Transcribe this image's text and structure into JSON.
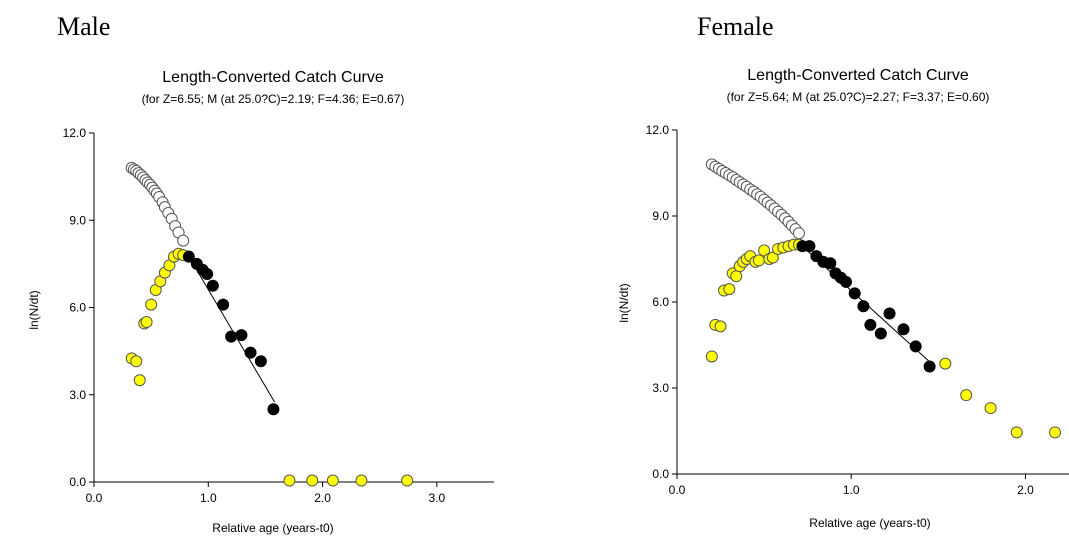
{
  "panels": {
    "left_label": "Male",
    "right_label": "Female"
  },
  "chart_data": [
    {
      "type": "scatter",
      "panel": "Male",
      "title": "Length-Converted Catch Curve",
      "subtitle": "(for Z=6.55; M (at 25.0?C)=2.19; F=4.36; E=0.67)",
      "xlabel": "Relative age (years-t0)",
      "ylabel": "ln(N/dt)",
      "xlim": [
        0,
        3.5
      ],
      "ylim": [
        0,
        12
      ],
      "xticks": [
        0,
        1,
        2,
        3
      ],
      "xtick_labels": [
        "0.0",
        "1.0",
        "2.0",
        "3.0"
      ],
      "yticks": [
        0,
        3,
        6,
        9,
        12
      ],
      "ytick_labels": [
        "0.0",
        "3.0",
        "6.0",
        "9.0",
        "12.0"
      ],
      "series": [
        {
          "role": "extrapolated",
          "color": "#ffffff",
          "x": [
            0.33,
            0.35,
            0.37,
            0.39,
            0.41,
            0.43,
            0.45,
            0.47,
            0.49,
            0.51,
            0.53,
            0.55,
            0.57,
            0.6,
            0.62,
            0.65,
            0.68,
            0.71,
            0.74,
            0.78
          ],
          "y": [
            10.8,
            10.75,
            10.7,
            10.62,
            10.55,
            10.47,
            10.38,
            10.3,
            10.22,
            10.12,
            10.02,
            9.92,
            9.8,
            9.62,
            9.45,
            9.25,
            9.05,
            8.8,
            8.58,
            8.3
          ]
        },
        {
          "role": "not-used",
          "color": "#ffff00",
          "x": [
            0.33,
            0.37,
            0.4,
            0.44,
            0.46,
            0.5,
            0.54,
            0.58,
            0.62,
            0.66,
            0.7,
            0.74,
            0.78,
            1.71,
            1.91,
            2.09,
            2.34,
            2.74
          ],
          "y": [
            4.25,
            4.15,
            3.5,
            5.45,
            5.5,
            6.1,
            6.6,
            6.9,
            7.2,
            7.45,
            7.75,
            7.85,
            7.8,
            0.05,
            0.05,
            0.05,
            0.05,
            0.05
          ]
        },
        {
          "role": "used-in-regression",
          "color": "#000000",
          "x": [
            0.83,
            0.9,
            0.95,
            0.99,
            1.04,
            1.13,
            1.2,
            1.29,
            1.37,
            1.46,
            1.57
          ],
          "y": [
            7.75,
            7.5,
            7.3,
            7.15,
            6.75,
            6.1,
            5.0,
            5.05,
            4.45,
            4.15,
            2.5
          ]
        }
      ],
      "regression_line": {
        "x": [
          0.8,
          1.58
        ],
        "y": [
          7.95,
          2.75
        ]
      }
    },
    {
      "type": "scatter",
      "panel": "Female",
      "title": "Length-Converted Catch Curve",
      "subtitle": "(for Z=5.64; M (at 25.0?C)=2.27; F=3.37; E=0.60)",
      "xlabel": "Relative age (years-t0)",
      "ylabel": "ln(N/dt)",
      "xlim": [
        0,
        2.25
      ],
      "ylim": [
        0,
        12
      ],
      "xticks": [
        0,
        1,
        2
      ],
      "xtick_labels": [
        "0.0",
        "1.0",
        "2.0"
      ],
      "yticks": [
        0,
        3,
        6,
        9,
        12
      ],
      "ytick_labels": [
        "0.0",
        "3.0",
        "6.0",
        "9.0",
        "12.0"
      ],
      "series": [
        {
          "role": "extrapolated",
          "color": "#ffffff",
          "x": [
            0.2,
            0.22,
            0.24,
            0.26,
            0.28,
            0.3,
            0.32,
            0.34,
            0.36,
            0.38,
            0.4,
            0.42,
            0.44,
            0.46,
            0.48,
            0.5,
            0.52,
            0.54,
            0.56,
            0.58,
            0.6,
            0.62,
            0.64,
            0.66,
            0.68,
            0.7
          ],
          "y": [
            10.8,
            10.72,
            10.65,
            10.57,
            10.5,
            10.42,
            10.35,
            10.26,
            10.18,
            10.1,
            10.02,
            9.93,
            9.85,
            9.76,
            9.67,
            9.57,
            9.47,
            9.37,
            9.26,
            9.15,
            9.04,
            8.92,
            8.8,
            8.67,
            8.54,
            8.4
          ]
        },
        {
          "role": "not-used",
          "color": "#ffff00",
          "x": [
            0.2,
            0.22,
            0.25,
            0.27,
            0.3,
            0.32,
            0.34,
            0.36,
            0.38,
            0.4,
            0.42,
            0.45,
            0.47,
            0.5,
            0.53,
            0.55,
            0.58,
            0.61,
            0.64,
            0.67,
            0.7,
            1.54,
            1.66,
            1.8,
            1.95,
            2.17
          ],
          "y": [
            4.1,
            5.2,
            5.15,
            6.4,
            6.45,
            7.0,
            6.9,
            7.25,
            7.4,
            7.5,
            7.6,
            7.4,
            7.45,
            7.8,
            7.5,
            7.55,
            7.85,
            7.9,
            7.95,
            8.0,
            8.0,
            3.85,
            2.75,
            2.3,
            1.45,
            1.45
          ]
        },
        {
          "role": "used-in-regression",
          "color": "#000000",
          "x": [
            0.72,
            0.76,
            0.8,
            0.84,
            0.88,
            0.91,
            0.94,
            0.97,
            1.02,
            1.07,
            1.11,
            1.17,
            1.22,
            1.3,
            1.37,
            1.45
          ],
          "y": [
            7.95,
            7.95,
            7.6,
            7.4,
            7.35,
            7.0,
            6.85,
            6.7,
            6.3,
            5.85,
            5.2,
            4.9,
            5.6,
            5.05,
            4.45,
            3.75
          ]
        }
      ],
      "regression_line": {
        "x": [
          0.7,
          1.48
        ],
        "y": [
          8.05,
          3.75
        ]
      }
    }
  ]
}
